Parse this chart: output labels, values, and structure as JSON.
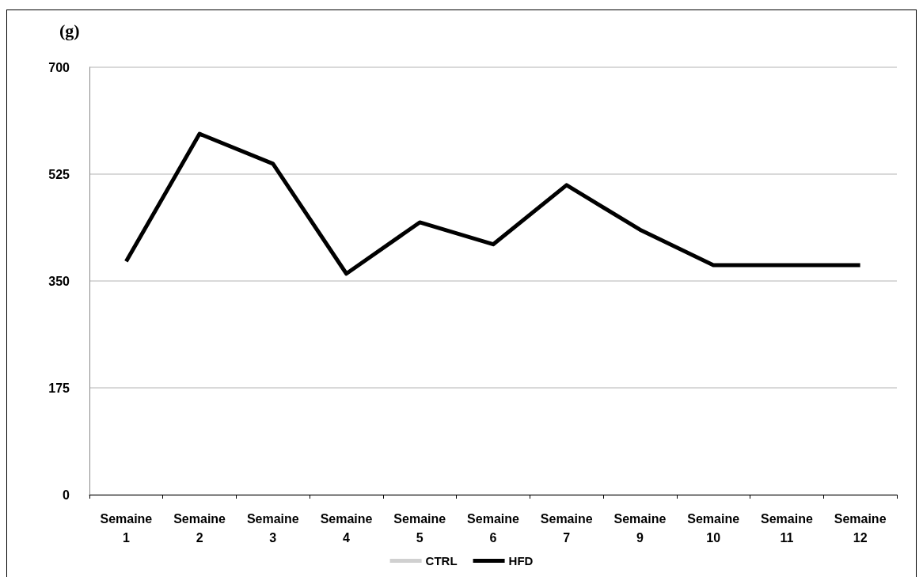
{
  "chart_data": {
    "type": "line",
    "title": "(g)",
    "categories": [
      "Semaine\n1",
      "Semaine\n2",
      "Semaine\n3",
      "Semaine\n4",
      "Semaine\n5",
      "Semaine\n6",
      "Semaine\n7",
      "Semaine\n9",
      "Semaine\n10",
      "Semaine\n11",
      "Semaine\n12"
    ],
    "series": [
      {
        "name": "CTRL",
        "color": "#d0d0d0",
        "values": [
          null,
          null,
          null,
          null,
          null,
          null,
          null,
          null,
          null,
          null,
          null
        ]
      },
      {
        "name": "HFD",
        "color": "#000000",
        "values": [
          382,
          591,
          542,
          362,
          446,
          410,
          507,
          434,
          376,
          376,
          376
        ]
      }
    ],
    "ylim": [
      0,
      700
    ],
    "yticks": [
      0,
      175,
      350,
      525,
      700
    ],
    "grid": "y",
    "legend": "bottom",
    "marker": "none",
    "line_style": "solid"
  }
}
